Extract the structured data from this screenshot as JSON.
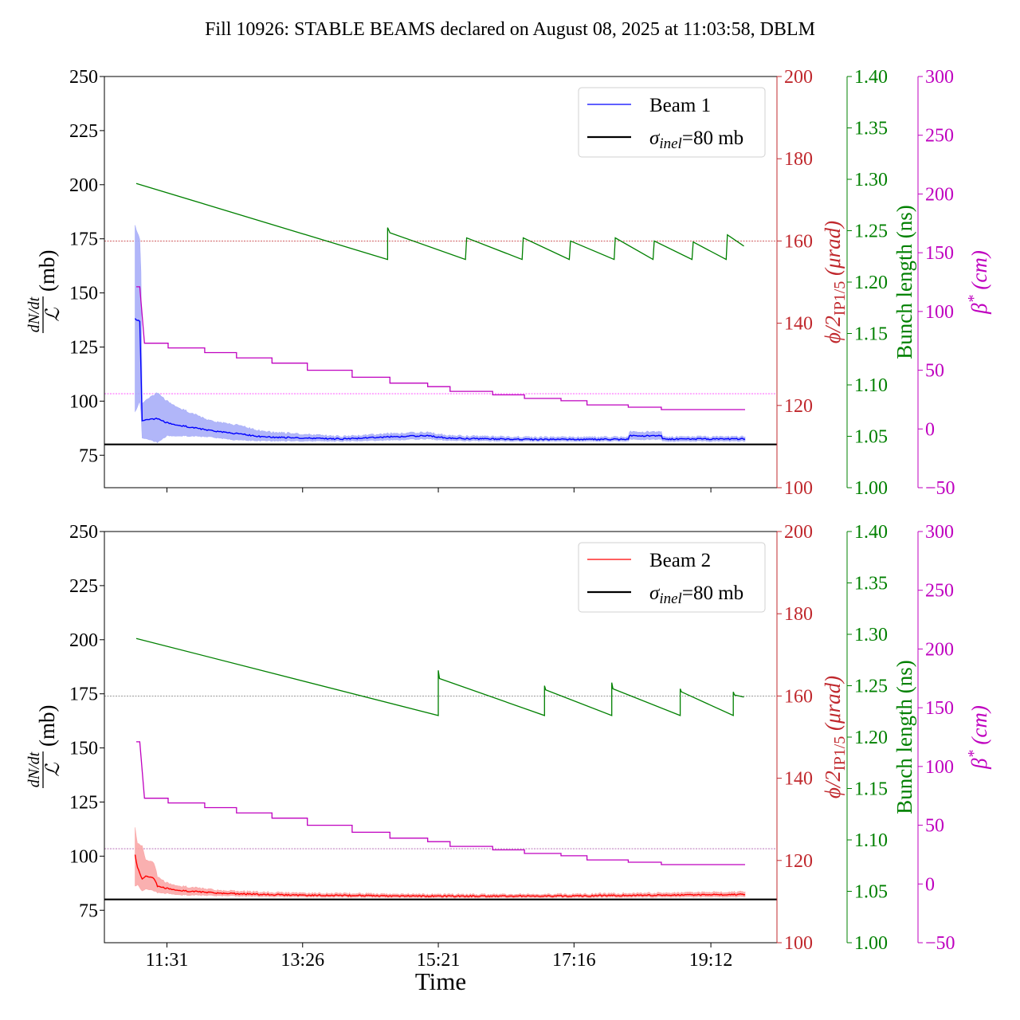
{
  "title": "Fill 10926: STABLE BEAMS declared on August 08, 2025 at 11:03:58, DBLM",
  "colors": {
    "beam1": "#0000ff",
    "beam1_band": "#a8aef8",
    "beam2": "#ff0000",
    "beam2_band": "#f9a7a7",
    "phi": "#c0282d",
    "bunch": "#008000",
    "beta": "#bf00bf",
    "sigma": "#000000",
    "refgray": "#777777"
  },
  "chart_data": [
    {
      "type": "line",
      "panel": "Beam 1",
      "xlabel": "",
      "xlim": [
        "10:38",
        "20:08"
      ],
      "xticks": [
        "11:31",
        "13:26",
        "15:21",
        "17:16",
        "19:12"
      ],
      "show_xtick_labels": false,
      "axes": {
        "left": {
          "label_num": "dN/dt",
          "label_den": "ℒ",
          "label_unit": "(mb)",
          "ylim": [
            60,
            250
          ],
          "ticks": [
            "75",
            "100",
            "125",
            "150",
            "175",
            "200",
            "225",
            "250"
          ]
        },
        "phi": {
          "label_main": "ϕ/2",
          "label_sub": "IP1/5",
          "label_unit": " (μrad)",
          "ylim": [
            100,
            200
          ],
          "ticks": [
            "100",
            "120",
            "140",
            "160",
            "180",
            "200"
          ],
          "ref_line": 160
        },
        "bunch": {
          "label": "Bunch length (ns)",
          "ylim": [
            1.0,
            1.4
          ],
          "ticks": [
            "1.00",
            "1.05",
            "1.10",
            "1.15",
            "1.20",
            "1.25",
            "1.30",
            "1.35",
            "1.40"
          ]
        },
        "beta": {
          "label_main": "β",
          "label_sup": "*",
          "label_unit": " (cm)",
          "ylim": [
            -50,
            300
          ],
          "ticks": [
            "−50",
            "0",
            "50",
            "100",
            "150",
            "200",
            "250",
            "300"
          ],
          "ref_line": 30
        }
      },
      "legend": {
        "placement": "top-right",
        "beam_label": "Beam 1",
        "sigma_symbol": "σ",
        "sigma_sub": "inel",
        "sigma_rest": "=80 mb"
      },
      "sigma_inel": 80,
      "beam": {
        "name": "Beam 1",
        "points": [
          [
            "11:04",
            138,
            95,
            181
          ],
          [
            "11:08",
            137,
            100,
            175
          ],
          [
            "11:09",
            115,
            95,
            160
          ],
          [
            "11:10",
            91,
            83,
            99
          ],
          [
            "11:23",
            92,
            81,
            104
          ],
          [
            "11:31",
            90,
            84,
            100
          ],
          [
            "11:45",
            88.5,
            84,
            96
          ],
          [
            "12:07",
            86.5,
            83.5,
            91
          ],
          [
            "12:30",
            85,
            82,
            89
          ],
          [
            "12:52",
            83.5,
            81.7,
            86
          ],
          [
            "13:59",
            82.5,
            81.5,
            83.6
          ],
          [
            "14:38",
            83.5,
            82,
            85
          ],
          [
            "15:11",
            84,
            82.5,
            85.5
          ],
          [
            "15:31",
            82.8,
            81.8,
            84
          ],
          [
            "16:35",
            82.3,
            81.5,
            83.3
          ],
          [
            "18:02",
            82.3,
            81.5,
            83.3
          ],
          [
            "18:03",
            84,
            82.3,
            85.8
          ],
          [
            "18:30",
            84,
            82.3,
            85.8
          ],
          [
            "18:31",
            82.5,
            81.5,
            83.5
          ],
          [
            "19:41",
            82.5,
            81.5,
            83.5
          ]
        ]
      },
      "bunch_length": [
        [
          "11:05",
          1.296
        ],
        [
          "14:38",
          1.222
        ],
        [
          "14:38",
          1.253
        ],
        [
          "14:40",
          1.248
        ],
        [
          "15:44",
          1.222
        ],
        [
          "15:45",
          1.243
        ],
        [
          "16:32",
          1.222
        ],
        [
          "16:33",
          1.243
        ],
        [
          "17:12",
          1.222
        ],
        [
          "17:13",
          1.24
        ],
        [
          "17:50",
          1.222
        ],
        [
          "17:51",
          1.243
        ],
        [
          "18:23",
          1.222
        ],
        [
          "18:24",
          1.24
        ],
        [
          "18:56",
          1.222
        ],
        [
          "18:57",
          1.239
        ],
        [
          "19:25",
          1.222
        ],
        [
          "19:26",
          1.246
        ],
        [
          "19:40",
          1.235
        ]
      ],
      "beta_star": [
        [
          "11:05",
          121
        ],
        [
          "11:08",
          121
        ],
        [
          "11:12",
          73
        ],
        [
          "11:32",
          73
        ],
        [
          "11:32",
          69
        ],
        [
          "12:03",
          69
        ],
        [
          "12:03",
          65
        ],
        [
          "12:30",
          65
        ],
        [
          "12:30",
          60.5
        ],
        [
          "13:00",
          60.5
        ],
        [
          "13:00",
          56
        ],
        [
          "13:30",
          56
        ],
        [
          "13:30",
          50
        ],
        [
          "14:08",
          50
        ],
        [
          "14:08",
          44
        ],
        [
          "14:40",
          44
        ],
        [
          "14:40",
          39
        ],
        [
          "15:12",
          39
        ],
        [
          "15:12",
          36
        ],
        [
          "15:31",
          36
        ],
        [
          "15:31",
          32
        ],
        [
          "16:07",
          32
        ],
        [
          "16:07",
          29
        ],
        [
          "16:34",
          29
        ],
        [
          "16:34",
          26
        ],
        [
          "17:05",
          26
        ],
        [
          "17:05",
          24
        ],
        [
          "17:27",
          24
        ],
        [
          "17:27",
          20.5
        ],
        [
          "18:02",
          20.5
        ],
        [
          "18:02",
          18.5
        ],
        [
          "18:30",
          18.5
        ],
        [
          "18:30",
          16.5
        ],
        [
          "19:41",
          16.5
        ]
      ]
    },
    {
      "type": "line",
      "panel": "Beam 2",
      "xlabel": "Time",
      "xlim": [
        "10:38",
        "20:08"
      ],
      "xticks": [
        "11:31",
        "13:26",
        "15:21",
        "17:16",
        "19:12"
      ],
      "show_xtick_labels": true,
      "axes": {
        "left": {
          "label_num": "dN/dt",
          "label_den": "ℒ",
          "label_unit": "(mb)",
          "ylim": [
            60,
            250
          ],
          "ticks": [
            "75",
            "100",
            "125",
            "150",
            "175",
            "200",
            "225",
            "250"
          ]
        },
        "phi": {
          "label_main": "ϕ/2",
          "label_sub": "IP1/5",
          "label_unit": " (μrad)",
          "ylim": [
            100,
            200
          ],
          "ticks": [
            "100",
            "120",
            "140",
            "160",
            "180",
            "200"
          ],
          "ref_line": 160
        },
        "bunch": {
          "label": "Bunch length (ns)",
          "ylim": [
            1.0,
            1.4
          ],
          "ticks": [
            "1.00",
            "1.05",
            "1.10",
            "1.15",
            "1.20",
            "1.25",
            "1.30",
            "1.35",
            "1.40"
          ]
        },
        "beta": {
          "label_main": "β",
          "label_sup": "*",
          "label_unit": " (cm)",
          "ylim": [
            -50,
            300
          ],
          "ticks": [
            "−50",
            "0",
            "50",
            "100",
            "150",
            "200",
            "250",
            "300"
          ],
          "ref_line": 30
        }
      },
      "legend": {
        "placement": "top-right",
        "beam_label": "Beam 2",
        "sigma_symbol": "σ",
        "sigma_sub": "inel",
        "sigma_rest": "=80 mb"
      },
      "sigma_inel": 80,
      "beam": {
        "name": "Beam 2",
        "points": [
          [
            "11:04",
            100.5,
            86,
            113
          ],
          [
            "11:06",
            95,
            87,
            106
          ],
          [
            "11:10",
            89.5,
            84,
            105
          ],
          [
            "11:13",
            90.6,
            84.7,
            98
          ],
          [
            "11:20",
            89.8,
            84,
            97
          ],
          [
            "11:23",
            86.2,
            83.2,
            90.6
          ],
          [
            "11:31",
            85.1,
            82.8,
            87.6
          ],
          [
            "11:45",
            84,
            82.1,
            86
          ],
          [
            "12:19",
            82.8,
            81.7,
            84
          ],
          [
            "13:15",
            82,
            81.2,
            83
          ],
          [
            "15:28",
            81.5,
            80.8,
            82.3
          ],
          [
            "17:02",
            81.6,
            80.9,
            82.4
          ],
          [
            "19:41",
            82.3,
            81.3,
            83.5
          ]
        ]
      },
      "bunch_length": [
        [
          "11:05",
          1.296
        ],
        [
          "15:21",
          1.221
        ],
        [
          "15:21",
          1.265
        ],
        [
          "15:22",
          1.257
        ],
        [
          "16:51",
          1.221
        ],
        [
          "16:51",
          1.25
        ],
        [
          "16:52",
          1.246
        ],
        [
          "17:48",
          1.221
        ],
        [
          "17:48",
          1.253
        ],
        [
          "17:49",
          1.247
        ],
        [
          "18:46",
          1.221
        ],
        [
          "18:46",
          1.247
        ],
        [
          "18:47",
          1.244
        ],
        [
          "19:31",
          1.221
        ],
        [
          "19:31",
          1.244
        ],
        [
          "19:32",
          1.241
        ],
        [
          "19:40",
          1.239
        ]
      ],
      "beta_star": [
        [
          "11:05",
          121
        ],
        [
          "11:08",
          121
        ],
        [
          "11:12",
          73
        ],
        [
          "11:32",
          73
        ],
        [
          "11:32",
          69
        ],
        [
          "12:03",
          69
        ],
        [
          "12:03",
          65
        ],
        [
          "12:30",
          65
        ],
        [
          "12:30",
          60.5
        ],
        [
          "13:00",
          60.5
        ],
        [
          "13:00",
          56
        ],
        [
          "13:30",
          56
        ],
        [
          "13:30",
          50
        ],
        [
          "14:08",
          50
        ],
        [
          "14:08",
          44
        ],
        [
          "14:40",
          44
        ],
        [
          "14:40",
          39
        ],
        [
          "15:12",
          39
        ],
        [
          "15:12",
          36
        ],
        [
          "15:31",
          36
        ],
        [
          "15:31",
          32
        ],
        [
          "16:07",
          32
        ],
        [
          "16:07",
          29
        ],
        [
          "16:34",
          29
        ],
        [
          "16:34",
          26
        ],
        [
          "17:05",
          26
        ],
        [
          "17:05",
          24
        ],
        [
          "17:27",
          24
        ],
        [
          "17:27",
          20.5
        ],
        [
          "18:02",
          20.5
        ],
        [
          "18:02",
          18.5
        ],
        [
          "18:30",
          18.5
        ],
        [
          "18:30",
          16.5
        ],
        [
          "19:41",
          16.5
        ]
      ]
    }
  ]
}
